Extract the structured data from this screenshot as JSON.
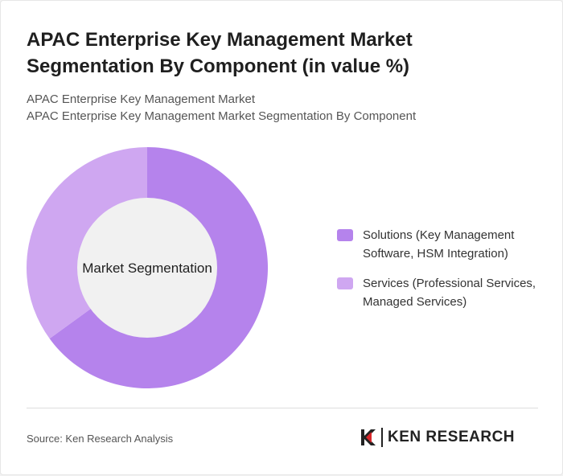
{
  "title": "APAC Enterprise Key Management Market Segmentation By Component (in value %)",
  "subtitle_line1": "APAC Enterprise Key Management Market",
  "subtitle_line2": "APAC Enterprise Key Management Market Segmentation By Component",
  "chart_data": {
    "type": "pie",
    "variant": "donut",
    "center_label": "Market Segmentation",
    "categories": [
      "Solutions (Key Management Software, HSM Integration)",
      "Services (Professional Services, Managed Services)"
    ],
    "values": [
      65,
      35
    ],
    "colors": [
      "#b583ec",
      "#cfa7f1"
    ],
    "legend_position": "right"
  },
  "legend": {
    "items": [
      {
        "label": "Solutions (Key Management Software, HSM Integration)",
        "color": "#b583ec"
      },
      {
        "label": "Services (Professional Services, Managed Services)",
        "color": "#cfa7f1"
      }
    ]
  },
  "footer": {
    "source": "Source: Ken Research Analysis",
    "logo_text": "KEN RESEARCH"
  },
  "colors": {
    "accent": "#b583ec",
    "center": "#f1f1f1"
  }
}
